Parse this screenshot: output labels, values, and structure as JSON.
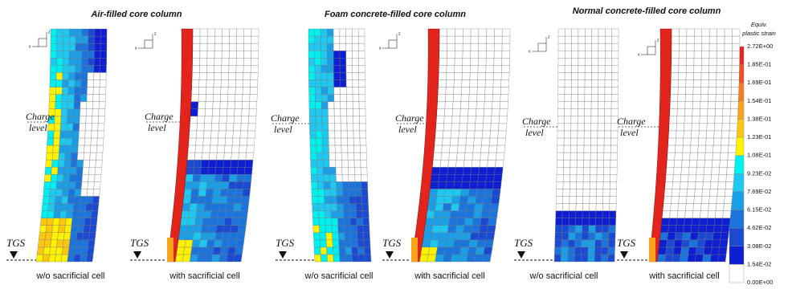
{
  "groups": [
    {
      "title": "Air-filled core column"
    },
    {
      "title": "Foam concrete-filled core column"
    },
    {
      "title": "Normal concrete-filled core column"
    }
  ],
  "panels": [
    {
      "label": "w/o sacrificial cell"
    },
    {
      "label": "with sacrificial cell"
    },
    {
      "label": "w/o sacrificial cell"
    },
    {
      "label": "with sacrificial cell"
    },
    {
      "label": "w/o sacrificial cell"
    },
    {
      "label": "with sacrificial cell"
    }
  ],
  "charge_level": [
    "Charge",
    "level"
  ],
  "ground": "TGS",
  "axes": {
    "vertical": "z",
    "horizontal": "x"
  },
  "legend": {
    "title": [
      "Equiv.",
      "plastic strain"
    ],
    "labels": [
      "2.72E+00",
      "1.85E-01",
      "1.69E-01",
      "1.54E-01",
      "1.38E-01",
      "1.23E-01",
      "1.08E-01",
      "9.23E-02",
      "7.69E-02",
      "6.15E-02",
      "4.62E-02",
      "3.08E-02",
      "1.54E-02",
      "0.00E+00"
    ]
  }
}
